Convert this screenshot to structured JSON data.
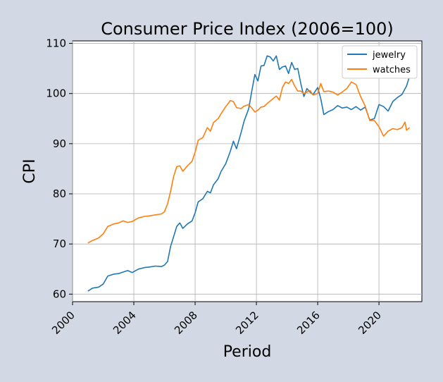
{
  "chart_data": {
    "type": "line",
    "title": "Consumer Price Index (2006=100)",
    "xlabel": "Period",
    "ylabel": "CPI",
    "xlim": [
      2000,
      2022.8
    ],
    "ylim": [
      58.5,
      110.5
    ],
    "xticks": [
      2000,
      2004,
      2008,
      2012,
      2016,
      2020
    ],
    "yticks": [
      60,
      70,
      80,
      90,
      100,
      110
    ],
    "grid": true,
    "legend_position": "top-right",
    "series": [
      {
        "name": "jewelry",
        "color": "#1f77b4",
        "points": [
          [
            2001.0,
            60.6
          ],
          [
            2001.3,
            61.2
          ],
          [
            2001.7,
            61.4
          ],
          [
            2002.0,
            62.0
          ],
          [
            2002.3,
            63.6
          ],
          [
            2002.7,
            64.0
          ],
          [
            2003.0,
            64.1
          ],
          [
            2003.3,
            64.4
          ],
          [
            2003.6,
            64.7
          ],
          [
            2003.9,
            64.3
          ],
          [
            2004.3,
            65.0
          ],
          [
            2004.7,
            65.3
          ],
          [
            2005.0,
            65.4
          ],
          [
            2005.4,
            65.6
          ],
          [
            2005.8,
            65.5
          ],
          [
            2006.0,
            65.8
          ],
          [
            2006.2,
            66.5
          ],
          [
            2006.4,
            69.5
          ],
          [
            2006.6,
            71.5
          ],
          [
            2006.8,
            73.5
          ],
          [
            2007.0,
            74.2
          ],
          [
            2007.2,
            73.1
          ],
          [
            2007.5,
            74.0
          ],
          [
            2007.8,
            74.6
          ],
          [
            2008.0,
            76.2
          ],
          [
            2008.2,
            78.4
          ],
          [
            2008.5,
            79.0
          ],
          [
            2008.8,
            80.5
          ],
          [
            2009.0,
            80.2
          ],
          [
            2009.2,
            81.8
          ],
          [
            2009.5,
            83.0
          ],
          [
            2009.7,
            84.5
          ],
          [
            2010.0,
            86.0
          ],
          [
            2010.3,
            88.5
          ],
          [
            2010.5,
            90.5
          ],
          [
            2010.7,
            89.0
          ],
          [
            2011.0,
            92.2
          ],
          [
            2011.2,
            94.5
          ],
          [
            2011.5,
            97.0
          ],
          [
            2011.7,
            100.5
          ],
          [
            2011.9,
            103.8
          ],
          [
            2012.1,
            102.5
          ],
          [
            2012.3,
            105.5
          ],
          [
            2012.5,
            105.6
          ],
          [
            2012.7,
            107.5
          ],
          [
            2012.9,
            107.3
          ],
          [
            2013.1,
            106.5
          ],
          [
            2013.3,
            107.5
          ],
          [
            2013.5,
            104.8
          ],
          [
            2013.7,
            105.3
          ],
          [
            2013.9,
            105.5
          ],
          [
            2014.1,
            104.0
          ],
          [
            2014.3,
            106.2
          ],
          [
            2014.5,
            104.8
          ],
          [
            2014.7,
            105.0
          ],
          [
            2014.9,
            102.0
          ],
          [
            2015.1,
            99.4
          ],
          [
            2015.3,
            101.0
          ],
          [
            2015.5,
            100.3
          ],
          [
            2015.7,
            99.8
          ],
          [
            2016.0,
            101.2
          ],
          [
            2016.2,
            99.0
          ],
          [
            2016.4,
            95.8
          ],
          [
            2016.7,
            96.4
          ],
          [
            2017.0,
            96.8
          ],
          [
            2017.3,
            97.6
          ],
          [
            2017.6,
            97.1
          ],
          [
            2017.9,
            97.3
          ],
          [
            2018.2,
            96.8
          ],
          [
            2018.5,
            97.4
          ],
          [
            2018.8,
            96.7
          ],
          [
            2019.1,
            97.3
          ],
          [
            2019.4,
            94.7
          ],
          [
            2019.7,
            95.0
          ],
          [
            2020.0,
            97.8
          ],
          [
            2020.3,
            97.4
          ],
          [
            2020.6,
            96.5
          ],
          [
            2020.9,
            98.4
          ],
          [
            2021.2,
            99.2
          ],
          [
            2021.5,
            99.8
          ],
          [
            2021.8,
            101.5
          ],
          [
            2022.0,
            103.5
          ]
        ]
      },
      {
        "name": "watches",
        "color": "#ff7f0e",
        "points": [
          [
            2001.0,
            70.2
          ],
          [
            2001.3,
            70.7
          ],
          [
            2001.7,
            71.2
          ],
          [
            2002.0,
            72.0
          ],
          [
            2002.3,
            73.5
          ],
          [
            2002.7,
            74.0
          ],
          [
            2003.0,
            74.2
          ],
          [
            2003.3,
            74.6
          ],
          [
            2003.6,
            74.3
          ],
          [
            2003.9,
            74.5
          ],
          [
            2004.3,
            75.2
          ],
          [
            2004.7,
            75.5
          ],
          [
            2005.0,
            75.6
          ],
          [
            2005.4,
            75.8
          ],
          [
            2005.8,
            76.0
          ],
          [
            2006.0,
            76.4
          ],
          [
            2006.2,
            78.0
          ],
          [
            2006.4,
            80.5
          ],
          [
            2006.6,
            83.5
          ],
          [
            2006.8,
            85.4
          ],
          [
            2007.0,
            85.6
          ],
          [
            2007.2,
            84.5
          ],
          [
            2007.5,
            85.6
          ],
          [
            2007.8,
            86.5
          ],
          [
            2008.0,
            88.3
          ],
          [
            2008.2,
            90.7
          ],
          [
            2008.5,
            91.2
          ],
          [
            2008.8,
            93.2
          ],
          [
            2009.0,
            92.5
          ],
          [
            2009.2,
            94.2
          ],
          [
            2009.5,
            95.0
          ],
          [
            2009.7,
            96.0
          ],
          [
            2010.0,
            97.4
          ],
          [
            2010.3,
            98.6
          ],
          [
            2010.5,
            98.4
          ],
          [
            2010.7,
            97.2
          ],
          [
            2011.0,
            97.0
          ],
          [
            2011.2,
            97.5
          ],
          [
            2011.5,
            97.8
          ],
          [
            2011.7,
            97.1
          ],
          [
            2011.9,
            96.3
          ],
          [
            2012.1,
            96.7
          ],
          [
            2012.3,
            97.3
          ],
          [
            2012.5,
            97.4
          ],
          [
            2012.7,
            98.0
          ],
          [
            2012.9,
            98.5
          ],
          [
            2013.1,
            99.0
          ],
          [
            2013.3,
            99.5
          ],
          [
            2013.5,
            98.7
          ],
          [
            2013.7,
            101.2
          ],
          [
            2013.9,
            102.3
          ],
          [
            2014.1,
            102.0
          ],
          [
            2014.3,
            102.8
          ],
          [
            2014.5,
            101.5
          ],
          [
            2014.7,
            100.5
          ],
          [
            2014.9,
            100.5
          ],
          [
            2015.1,
            100.0
          ],
          [
            2015.3,
            100.3
          ],
          [
            2015.5,
            100.6
          ],
          [
            2015.7,
            99.7
          ],
          [
            2016.0,
            100.0
          ],
          [
            2016.2,
            102.0
          ],
          [
            2016.4,
            100.4
          ],
          [
            2016.7,
            100.5
          ],
          [
            2017.0,
            100.3
          ],
          [
            2017.3,
            99.7
          ],
          [
            2017.6,
            100.3
          ],
          [
            2017.9,
            101.0
          ],
          [
            2018.2,
            102.3
          ],
          [
            2018.5,
            101.8
          ],
          [
            2018.8,
            99.4
          ],
          [
            2019.1,
            97.5
          ],
          [
            2019.4,
            94.6
          ],
          [
            2019.7,
            94.6
          ],
          [
            2020.0,
            93.4
          ],
          [
            2020.3,
            91.5
          ],
          [
            2020.6,
            92.5
          ],
          [
            2020.9,
            93.0
          ],
          [
            2021.2,
            92.8
          ],
          [
            2021.5,
            93.2
          ],
          [
            2021.7,
            94.3
          ],
          [
            2021.8,
            92.7
          ],
          [
            2022.0,
            93.2
          ]
        ]
      }
    ]
  }
}
